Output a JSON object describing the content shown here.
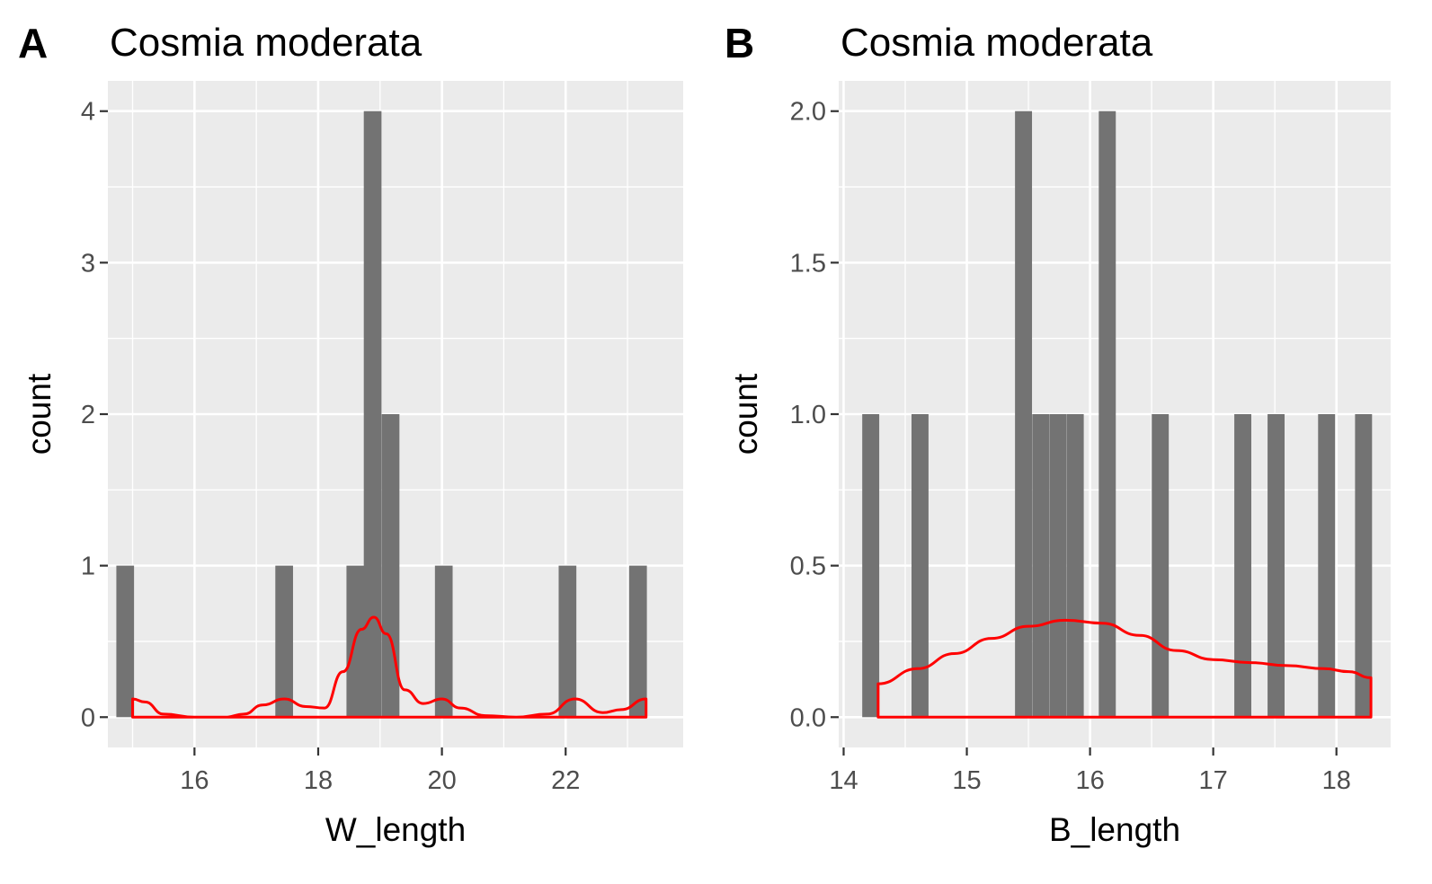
{
  "chart_data": [
    {
      "tag": "A",
      "type": "bar",
      "title": "Cosmia moderata",
      "xlabel": "W_length",
      "ylabel": "count",
      "xlim": [
        14.6,
        23.9
      ],
      "ylim": [
        -0.2,
        4.2
      ],
      "xticks": [
        16,
        18,
        20,
        22
      ],
      "yticks": [
        0,
        1,
        2,
        3,
        4
      ],
      "xtick_labels": [
        "16",
        "18",
        "20",
        "22"
      ],
      "ytick_labels": [
        "0",
        "1",
        "2",
        "3",
        "4"
      ],
      "bin_width": 0.286,
      "bins": [
        {
          "x": 14.88,
          "count": 1
        },
        {
          "x": 17.45,
          "count": 1
        },
        {
          "x": 18.6,
          "count": 1
        },
        {
          "x": 18.88,
          "count": 4
        },
        {
          "x": 19.17,
          "count": 2
        },
        {
          "x": 20.03,
          "count": 1
        },
        {
          "x": 22.03,
          "count": 1
        },
        {
          "x": 23.17,
          "count": 1
        }
      ],
      "density_curve": {
        "x": [
          15.0,
          15.2,
          15.5,
          16.0,
          16.5,
          16.8,
          17.1,
          17.45,
          17.8,
          18.1,
          18.4,
          18.7,
          18.9,
          19.1,
          19.4,
          19.7,
          20.0,
          20.3,
          20.7,
          21.2,
          21.7,
          22.15,
          22.6,
          22.9,
          23.3
        ],
        "y": [
          0.12,
          0.1,
          0.02,
          0.0,
          0.0,
          0.02,
          0.08,
          0.12,
          0.07,
          0.06,
          0.3,
          0.58,
          0.66,
          0.55,
          0.18,
          0.09,
          0.12,
          0.06,
          0.01,
          0.0,
          0.02,
          0.12,
          0.03,
          0.05,
          0.12
        ]
      },
      "grid": true,
      "colors": {
        "bar": "#737373",
        "curve": "#ff0000",
        "panel": "#ebebeb",
        "grid": "#ffffff"
      }
    },
    {
      "tag": "B",
      "type": "bar",
      "title": "Cosmia moderata",
      "xlabel": "B_length",
      "ylabel": "count",
      "xlim": [
        13.96,
        18.44
      ],
      "ylim": [
        -0.1,
        2.1
      ],
      "xticks": [
        14,
        15,
        16,
        17,
        18
      ],
      "yticks": [
        0.0,
        0.5,
        1.0,
        1.5,
        2.0
      ],
      "xtick_labels": [
        "14",
        "15",
        "16",
        "17",
        "18"
      ],
      "ytick_labels": [
        "0.0",
        "0.5",
        "1.0",
        "1.5",
        "2.0"
      ],
      "bin_width": 0.138,
      "bins": [
        {
          "x": 14.22,
          "count": 1
        },
        {
          "x": 14.62,
          "count": 1
        },
        {
          "x": 15.46,
          "count": 2
        },
        {
          "x": 15.6,
          "count": 1
        },
        {
          "x": 15.74,
          "count": 1
        },
        {
          "x": 15.88,
          "count": 1
        },
        {
          "x": 16.14,
          "count": 2
        },
        {
          "x": 16.57,
          "count": 1
        },
        {
          "x": 17.24,
          "count": 1
        },
        {
          "x": 17.51,
          "count": 1
        },
        {
          "x": 17.92,
          "count": 1
        },
        {
          "x": 18.22,
          "count": 1
        }
      ],
      "density_curve": {
        "x": [
          14.28,
          14.6,
          14.9,
          15.2,
          15.5,
          15.8,
          16.1,
          16.4,
          16.7,
          17.0,
          17.3,
          17.6,
          17.9,
          18.1,
          18.28
        ],
        "y": [
          0.11,
          0.16,
          0.21,
          0.26,
          0.3,
          0.32,
          0.31,
          0.27,
          0.22,
          0.19,
          0.18,
          0.17,
          0.16,
          0.15,
          0.13
        ]
      },
      "grid": true,
      "colors": {
        "bar": "#737373",
        "curve": "#ff0000",
        "panel": "#ebebeb",
        "grid": "#ffffff"
      }
    }
  ]
}
